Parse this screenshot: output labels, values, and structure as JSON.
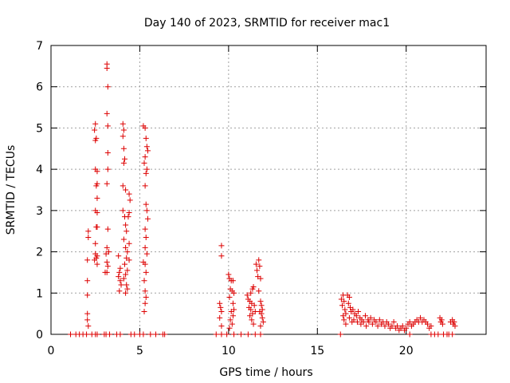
{
  "chart_data": {
    "type": "scatter",
    "title": "Day 140 of 2023, SRMTID for receiver mac1",
    "xlabel": "GPS time / hours",
    "ylabel": "SRMTID / TECUs",
    "xlim": [
      0,
      24.5
    ],
    "ylim": [
      0,
      7
    ],
    "x_ticks": [
      0,
      5,
      10,
      15,
      20
    ],
    "y_ticks": [
      0,
      1,
      2,
      3,
      4,
      5,
      6,
      7
    ],
    "grid": true,
    "marker": "+",
    "color": "#dd0000",
    "series": [
      {
        "name": "SRMTID",
        "points": [
          [
            1.1,
            0
          ],
          [
            1.4,
            0
          ],
          [
            1.6,
            0
          ],
          [
            1.8,
            0
          ],
          [
            2.0,
            0
          ],
          [
            2.3,
            0
          ],
          [
            2.5,
            0
          ],
          [
            2.6,
            0
          ],
          [
            3.0,
            0
          ],
          [
            3.1,
            0
          ],
          [
            3.3,
            0
          ],
          [
            3.7,
            0
          ],
          [
            3.9,
            0
          ],
          [
            4.5,
            0
          ],
          [
            4.7,
            0
          ],
          [
            5.0,
            0
          ],
          [
            5.2,
            0
          ],
          [
            5.6,
            0
          ],
          [
            5.9,
            0
          ],
          [
            6.3,
            0
          ],
          [
            6.4,
            0
          ],
          [
            9.3,
            0
          ],
          [
            9.6,
            0
          ],
          [
            9.9,
            0
          ],
          [
            10.3,
            0
          ],
          [
            10.7,
            0
          ],
          [
            11.1,
            0
          ],
          [
            11.5,
            0
          ],
          [
            11.8,
            0
          ],
          [
            16.3,
            0
          ],
          [
            20.2,
            0
          ],
          [
            21.4,
            0
          ],
          [
            21.6,
            0
          ],
          [
            21.8,
            0
          ],
          [
            22.1,
            0
          ],
          [
            22.3,
            0
          ],
          [
            22.4,
            0
          ],
          [
            22.6,
            0
          ],
          [
            2.05,
            0.95
          ],
          [
            2.05,
            1.3
          ],
          [
            2.05,
            1.8
          ],
          [
            2.1,
            2.35
          ],
          [
            2.1,
            2.5
          ],
          [
            2.05,
            0.5
          ],
          [
            2.05,
            0.35
          ],
          [
            2.1,
            0.2
          ],
          [
            2.45,
            4.95
          ],
          [
            2.5,
            5.1
          ],
          [
            2.5,
            4.7
          ],
          [
            2.55,
            4.75
          ],
          [
            2.5,
            4.0
          ],
          [
            2.6,
            3.95
          ],
          [
            2.55,
            3.6
          ],
          [
            2.6,
            3.65
          ],
          [
            2.6,
            3.3
          ],
          [
            2.5,
            3.0
          ],
          [
            2.6,
            2.95
          ],
          [
            2.6,
            2.6
          ],
          [
            2.55,
            2.6
          ],
          [
            2.5,
            2.2
          ],
          [
            2.5,
            1.95
          ],
          [
            2.55,
            1.85
          ],
          [
            2.6,
            1.7
          ],
          [
            2.6,
            1.9
          ],
          [
            2.45,
            1.8
          ],
          [
            3.15,
            6.55
          ],
          [
            3.15,
            6.45
          ],
          [
            3.2,
            6.0
          ],
          [
            3.15,
            5.35
          ],
          [
            3.2,
            5.05
          ],
          [
            3.2,
            4.4
          ],
          [
            3.2,
            4.0
          ],
          [
            3.15,
            3.65
          ],
          [
            3.2,
            2.55
          ],
          [
            3.15,
            2.1
          ],
          [
            3.1,
            1.95
          ],
          [
            3.15,
            1.75
          ],
          [
            3.15,
            1.5
          ],
          [
            3.05,
            1.5
          ],
          [
            3.2,
            1.65
          ],
          [
            3.25,
            2.0
          ],
          [
            3.8,
            1.9
          ],
          [
            3.85,
            1.5
          ],
          [
            3.8,
            1.4
          ],
          [
            3.9,
            1.3
          ],
          [
            3.85,
            1.05
          ],
          [
            3.95,
            1.2
          ],
          [
            3.9,
            1.6
          ],
          [
            4.05,
            5.1
          ],
          [
            4.1,
            4.95
          ],
          [
            4.05,
            4.8
          ],
          [
            4.1,
            4.5
          ],
          [
            4.15,
            4.25
          ],
          [
            4.1,
            4.15
          ],
          [
            4.05,
            3.6
          ],
          [
            4.2,
            3.5
          ],
          [
            4.05,
            3.0
          ],
          [
            4.15,
            2.85
          ],
          [
            4.2,
            2.65
          ],
          [
            4.25,
            2.5
          ],
          [
            4.1,
            2.3
          ],
          [
            4.2,
            2.1
          ],
          [
            4.3,
            2.0
          ],
          [
            4.25,
            1.85
          ],
          [
            4.15,
            1.7
          ],
          [
            4.3,
            1.55
          ],
          [
            4.2,
            1.45
          ],
          [
            4.1,
            1.35
          ],
          [
            4.25,
            1.2
          ],
          [
            4.3,
            1.1
          ],
          [
            4.2,
            1.0
          ],
          [
            4.4,
            3.4
          ],
          [
            4.45,
            3.25
          ],
          [
            4.4,
            2.95
          ],
          [
            4.35,
            2.85
          ],
          [
            4.4,
            2.2
          ],
          [
            4.4,
            1.8
          ],
          [
            5.2,
            5.05
          ],
          [
            5.3,
            5.0
          ],
          [
            5.35,
            4.75
          ],
          [
            5.4,
            4.55
          ],
          [
            5.45,
            4.45
          ],
          [
            5.3,
            4.3
          ],
          [
            5.25,
            4.15
          ],
          [
            5.4,
            4.0
          ],
          [
            5.35,
            3.9
          ],
          [
            5.3,
            3.6
          ],
          [
            5.35,
            3.15
          ],
          [
            5.4,
            3.0
          ],
          [
            5.45,
            2.8
          ],
          [
            5.3,
            2.55
          ],
          [
            5.35,
            2.35
          ],
          [
            5.3,
            2.1
          ],
          [
            5.4,
            1.95
          ],
          [
            5.2,
            1.75
          ],
          [
            5.3,
            1.7
          ],
          [
            5.35,
            1.5
          ],
          [
            5.25,
            1.3
          ],
          [
            5.3,
            1.05
          ],
          [
            5.35,
            0.9
          ],
          [
            5.3,
            0.75
          ],
          [
            5.25,
            0.55
          ],
          [
            9.6,
            2.15
          ],
          [
            9.6,
            1.9
          ],
          [
            9.5,
            0.75
          ],
          [
            9.55,
            0.65
          ],
          [
            9.6,
            0.55
          ],
          [
            9.5,
            0.4
          ],
          [
            9.6,
            0.2
          ],
          [
            10.0,
            1.45
          ],
          [
            10.05,
            1.35
          ],
          [
            10.15,
            1.3
          ],
          [
            10.25,
            1.3
          ],
          [
            10.1,
            1.1
          ],
          [
            10.2,
            1.05
          ],
          [
            10.3,
            1.0
          ],
          [
            10.05,
            0.9
          ],
          [
            10.25,
            0.75
          ],
          [
            10.3,
            0.6
          ],
          [
            10.15,
            0.55
          ],
          [
            10.25,
            0.45
          ],
          [
            10.1,
            0.35
          ],
          [
            10.2,
            0.25
          ],
          [
            10.05,
            0.15
          ],
          [
            11.05,
            0.95
          ],
          [
            11.1,
            0.85
          ],
          [
            11.2,
            0.8
          ],
          [
            11.3,
            0.75
          ],
          [
            11.15,
            0.65
          ],
          [
            11.25,
            0.6
          ],
          [
            11.35,
            0.5
          ],
          [
            11.2,
            0.45
          ],
          [
            11.3,
            0.35
          ],
          [
            11.4,
            0.25
          ],
          [
            11.25,
            1.0
          ],
          [
            11.4,
            1.15
          ],
          [
            11.35,
            1.1
          ],
          [
            11.45,
            0.7
          ],
          [
            11.5,
            0.55
          ],
          [
            11.55,
            1.7
          ],
          [
            11.6,
            1.55
          ],
          [
            11.7,
            1.8
          ],
          [
            11.75,
            1.65
          ],
          [
            11.65,
            1.4
          ],
          [
            11.8,
            1.35
          ],
          [
            11.7,
            1.05
          ],
          [
            11.8,
            0.8
          ],
          [
            11.75,
            0.55
          ],
          [
            11.85,
            0.5
          ],
          [
            11.9,
            0.4
          ],
          [
            11.95,
            0.3
          ],
          [
            11.85,
            0.7
          ],
          [
            11.9,
            0.6
          ],
          [
            11.8,
            0.2
          ],
          [
            16.35,
            0.85
          ],
          [
            16.45,
            0.95
          ],
          [
            16.5,
            0.8
          ],
          [
            16.4,
            0.7
          ],
          [
            16.55,
            0.6
          ],
          [
            16.6,
            0.5
          ],
          [
            16.45,
            0.45
          ],
          [
            16.5,
            0.35
          ],
          [
            16.6,
            0.25
          ],
          [
            16.7,
            0.95
          ],
          [
            16.8,
            0.9
          ],
          [
            16.75,
            0.75
          ],
          [
            16.85,
            0.65
          ],
          [
            16.9,
            0.55
          ],
          [
            16.8,
            0.4
          ],
          [
            16.95,
            0.3
          ],
          [
            17.0,
            0.6
          ],
          [
            17.1,
            0.5
          ],
          [
            17.05,
            0.35
          ],
          [
            17.2,
            0.45
          ],
          [
            17.3,
            0.55
          ],
          [
            17.25,
            0.3
          ],
          [
            17.4,
            0.4
          ],
          [
            17.5,
            0.35
          ],
          [
            17.45,
            0.25
          ],
          [
            17.6,
            0.3
          ],
          [
            17.7,
            0.45
          ],
          [
            17.75,
            0.2
          ],
          [
            17.85,
            0.35
          ],
          [
            17.9,
            0.3
          ],
          [
            18.0,
            0.4
          ],
          [
            18.1,
            0.25
          ],
          [
            18.2,
            0.35
          ],
          [
            18.3,
            0.3
          ],
          [
            18.4,
            0.2
          ],
          [
            18.5,
            0.35
          ],
          [
            18.6,
            0.25
          ],
          [
            18.7,
            0.3
          ],
          [
            18.8,
            0.2
          ],
          [
            18.9,
            0.3
          ],
          [
            19.0,
            0.25
          ],
          [
            19.1,
            0.15
          ],
          [
            19.2,
            0.2
          ],
          [
            19.3,
            0.3
          ],
          [
            19.4,
            0.15
          ],
          [
            19.5,
            0.2
          ],
          [
            19.6,
            0.1
          ],
          [
            19.7,
            0.15
          ],
          [
            19.8,
            0.2
          ],
          [
            19.9,
            0.1
          ],
          [
            20.0,
            0.15
          ],
          [
            20.1,
            0.25
          ],
          [
            20.2,
            0.3
          ],
          [
            20.3,
            0.2
          ],
          [
            20.4,
            0.25
          ],
          [
            20.5,
            0.3
          ],
          [
            20.6,
            0.35
          ],
          [
            20.7,
            0.3
          ],
          [
            20.8,
            0.4
          ],
          [
            20.9,
            0.3
          ],
          [
            21.0,
            0.35
          ],
          [
            21.1,
            0.3
          ],
          [
            21.2,
            0.25
          ],
          [
            21.3,
            0.15
          ],
          [
            21.4,
            0.2
          ],
          [
            21.9,
            0.4
          ],
          [
            21.95,
            0.3
          ],
          [
            22.0,
            0.35
          ],
          [
            22.05,
            0.25
          ],
          [
            22.5,
            0.3
          ],
          [
            22.6,
            0.35
          ],
          [
            22.65,
            0.25
          ],
          [
            22.7,
            0.3
          ],
          [
            22.75,
            0.2
          ]
        ]
      }
    ]
  }
}
